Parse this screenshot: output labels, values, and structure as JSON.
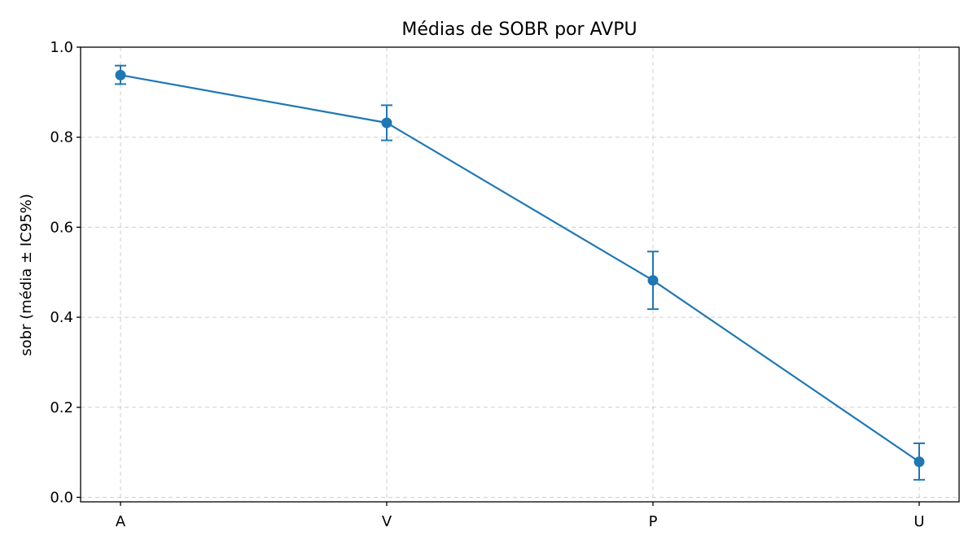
{
  "chart_data": {
    "type": "line",
    "title": "Médias de SOBR por AVPU",
    "xlabel": "",
    "ylabel": "sobr (média ± IC95%)",
    "categories": [
      "A",
      "V",
      "P",
      "U"
    ],
    "series": [
      {
        "values": [
          0.938,
          0.832,
          0.482,
          0.079
        ],
        "ci_lower": [
          0.918,
          0.793,
          0.418,
          0.039
        ],
        "ci_upper": [
          0.959,
          0.871,
          0.546,
          0.12
        ],
        "color": "#1f77b4"
      }
    ],
    "ylim": [
      -0.01,
      1.0
    ],
    "yticks": [
      "0.0",
      "0.2",
      "0.4",
      "0.6",
      "0.8",
      "1.0"
    ],
    "grid": true,
    "grid_style": "dashed",
    "error_bars": "ci95"
  }
}
